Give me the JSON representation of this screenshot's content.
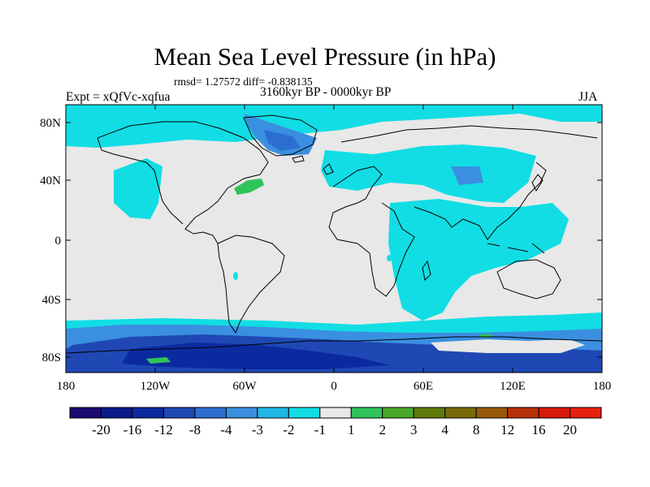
{
  "title": "Mean Sea Level Pressure (in hPa)",
  "stats_line": "rmsd= 1.27572 diff= -0.838135",
  "experiment": "Expt = xQfVc-xqfua",
  "period": "3160kyr BP - 0000kyr BP",
  "season": "JJA",
  "lat_ticks": [
    "80N",
    "40N",
    "0",
    "40S",
    "80S"
  ],
  "lon_ticks": [
    "180",
    "120W",
    "60W",
    "0",
    "60E",
    "120E",
    "180"
  ],
  "colorbar": {
    "labels": [
      "-20",
      "-16",
      "-12",
      "-8",
      "-4",
      "-3",
      "-2",
      "-1",
      "1",
      "2",
      "3",
      "4",
      "8",
      "12",
      "16",
      "20"
    ],
    "colors": [
      "#1a0a6e",
      "#0a1a8a",
      "#0c2aa0",
      "#1f48b4",
      "#2c6ed0",
      "#3a8fe0",
      "#1fb8e6",
      "#12dde4",
      "#e8e8e8",
      "#2fc45a",
      "#4aa82a",
      "#607a0c",
      "#7a6a0a",
      "#985a0a",
      "#b83008",
      "#d81a0a",
      "#e82010"
    ]
  },
  "field_colors": {
    "land_neutral": "#e8e8e8",
    "cyan_light": "#12dde4",
    "blue_light": "#3a8fe0",
    "blue_mid": "#2c6ed0",
    "blue_dark": "#0c2aa0",
    "green": "#2fc45a",
    "coast": "#000000"
  }
}
